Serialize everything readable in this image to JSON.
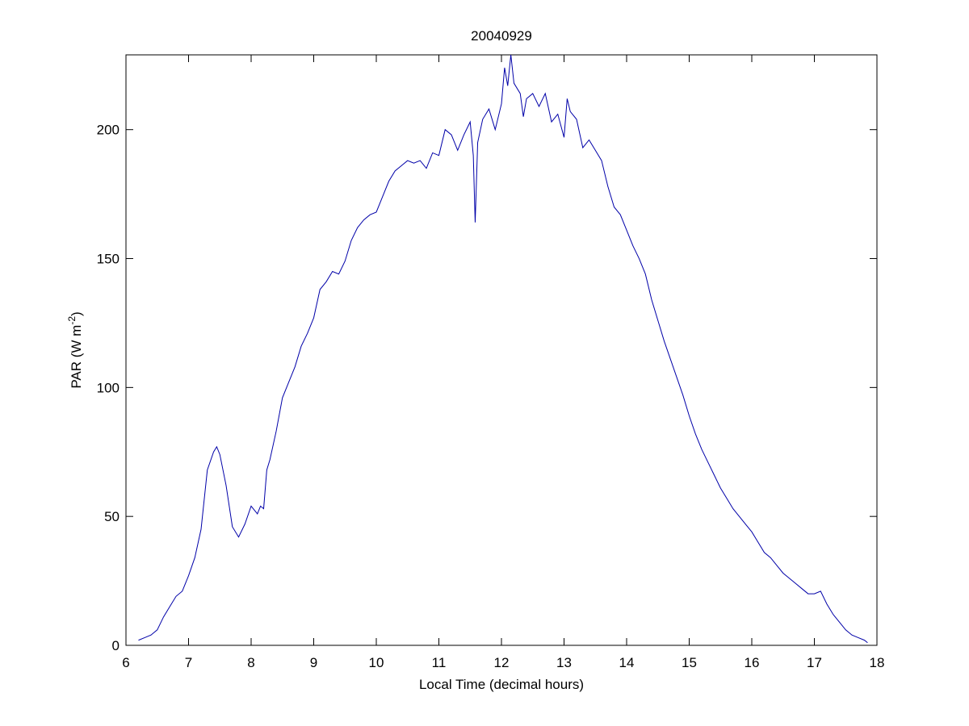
{
  "chart_data": {
    "type": "line",
    "title": "20040929",
    "xlabel": "Local Time (decimal hours)",
    "ylabel": [
      "PAR (W m",
      "-2",
      ")"
    ],
    "xlim": [
      6,
      18
    ],
    "xticks": [
      6,
      7,
      8,
      9,
      10,
      11,
      12,
      13,
      14,
      15,
      16,
      17,
      18
    ],
    "ylim": [
      0,
      229
    ],
    "yticks": [
      0,
      50,
      100,
      150,
      200
    ],
    "grid": false,
    "series": [
      {
        "color": "#0000a8",
        "x": [
          6.2,
          6.3,
          6.4,
          6.5,
          6.6,
          6.7,
          6.8,
          6.9,
          7.0,
          7.1,
          7.2,
          7.3,
          7.4,
          7.45,
          7.5,
          7.6,
          7.7,
          7.8,
          7.9,
          8.0,
          8.1,
          8.15,
          8.2,
          8.25,
          8.3,
          8.4,
          8.5,
          8.6,
          8.7,
          8.8,
          8.9,
          9.0,
          9.1,
          9.2,
          9.3,
          9.4,
          9.5,
          9.6,
          9.7,
          9.8,
          9.9,
          10.0,
          10.1,
          10.2,
          10.3,
          10.4,
          10.5,
          10.6,
          10.7,
          10.8,
          10.9,
          11.0,
          11.1,
          11.2,
          11.3,
          11.4,
          11.5,
          11.55,
          11.58,
          11.62,
          11.7,
          11.8,
          11.9,
          12.0,
          12.05,
          12.1,
          12.15,
          12.2,
          12.3,
          12.35,
          12.4,
          12.5,
          12.6,
          12.7,
          12.8,
          12.9,
          13.0,
          13.05,
          13.1,
          13.2,
          13.3,
          13.4,
          13.5,
          13.6,
          13.7,
          13.8,
          13.9,
          14.0,
          14.1,
          14.2,
          14.3,
          14.4,
          14.5,
          14.6,
          14.7,
          14.8,
          14.9,
          15.0,
          15.1,
          15.2,
          15.3,
          15.4,
          15.5,
          15.6,
          15.7,
          15.8,
          15.9,
          16.0,
          16.1,
          16.2,
          16.3,
          16.4,
          16.5,
          16.6,
          16.7,
          16.8,
          16.9,
          17.0,
          17.1,
          17.2,
          17.3,
          17.4,
          17.5,
          17.6,
          17.7,
          17.8,
          17.85
        ],
        "values": [
          2,
          3,
          4,
          6,
          11,
          15,
          19,
          21,
          27,
          34,
          45,
          68,
          75,
          77,
          74,
          62,
          46,
          42,
          47,
          54,
          51,
          54,
          53,
          68,
          72,
          83,
          96,
          102,
          108,
          116,
          121,
          127,
          138,
          141,
          145,
          144,
          149,
          157,
          162,
          165,
          167,
          168,
          174,
          180,
          184,
          186,
          188,
          187,
          188,
          185,
          191,
          190,
          200,
          198,
          192,
          198,
          203,
          190,
          164,
          195,
          204,
          208,
          200,
          210,
          224,
          217,
          229,
          218,
          214,
          205,
          212,
          214,
          209,
          214,
          203,
          206,
          197,
          212,
          207,
          204,
          193,
          196,
          192,
          188,
          178,
          170,
          167,
          161,
          155,
          150,
          144,
          134,
          126,
          118,
          111,
          104,
          97,
          89,
          82,
          76,
          71,
          66,
          61,
          57,
          53,
          50,
          47,
          44,
          40,
          36,
          34,
          31,
          28,
          26,
          24,
          22,
          20,
          20,
          21,
          16,
          12,
          9,
          6,
          4,
          3,
          2,
          1
        ]
      }
    ]
  }
}
